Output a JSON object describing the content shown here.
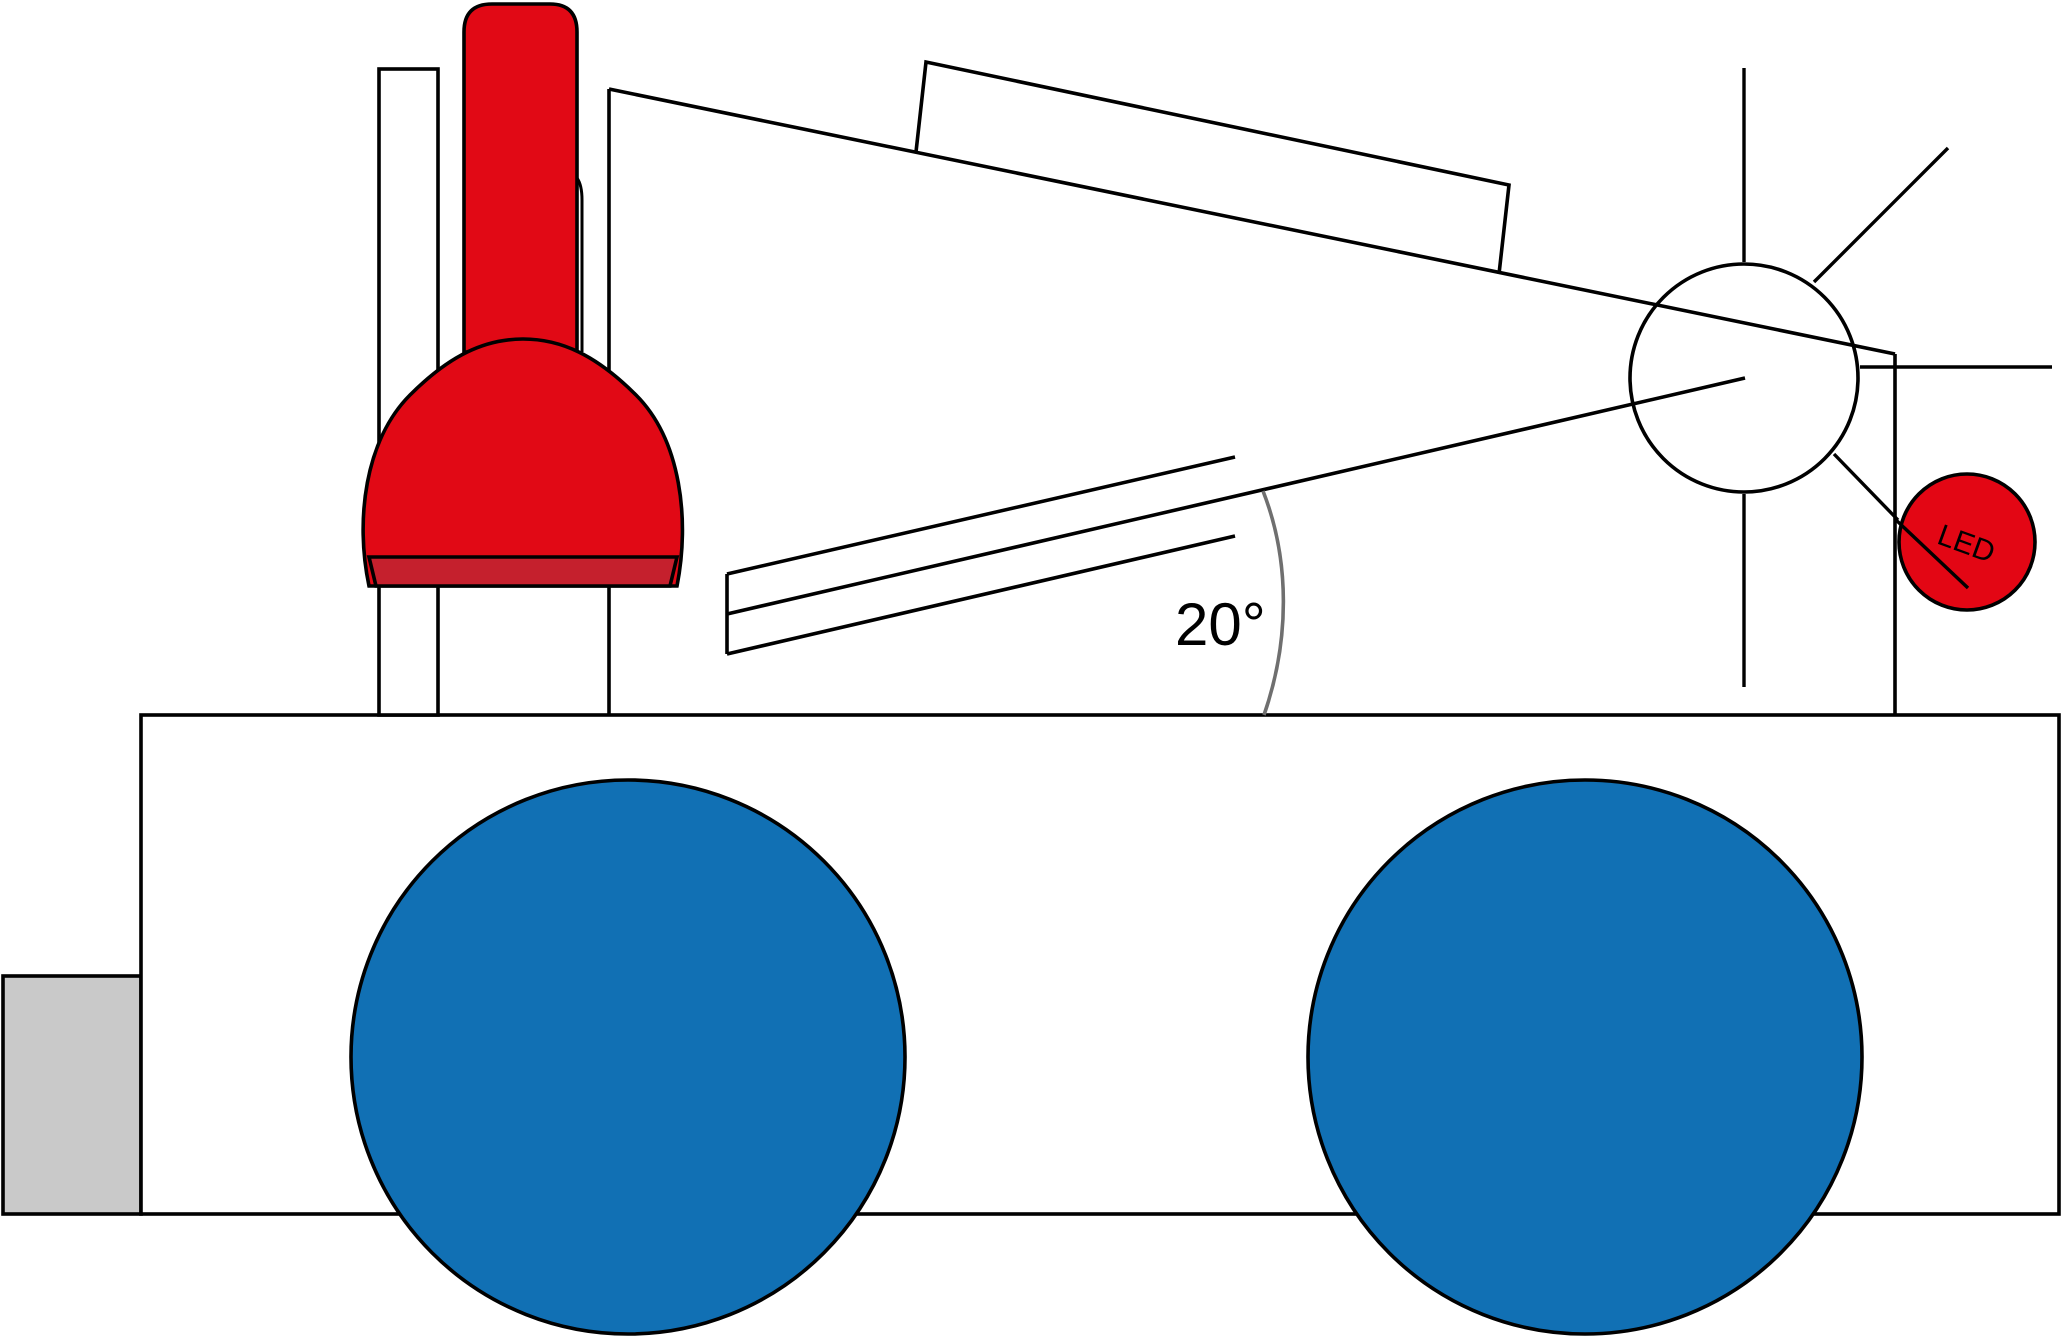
{
  "diagram": {
    "angle_label": "20°",
    "led_label": "LED"
  },
  "colors": {
    "wheel": "#1170b4",
    "lamp_red": "#e10915",
    "lamp_band": "#c5202d",
    "led_red": "#e30614",
    "bumper_grey": "#c9c9c9",
    "outline": "#000000",
    "angle_arc": "#6f6f6f",
    "background": "#ffffff"
  }
}
